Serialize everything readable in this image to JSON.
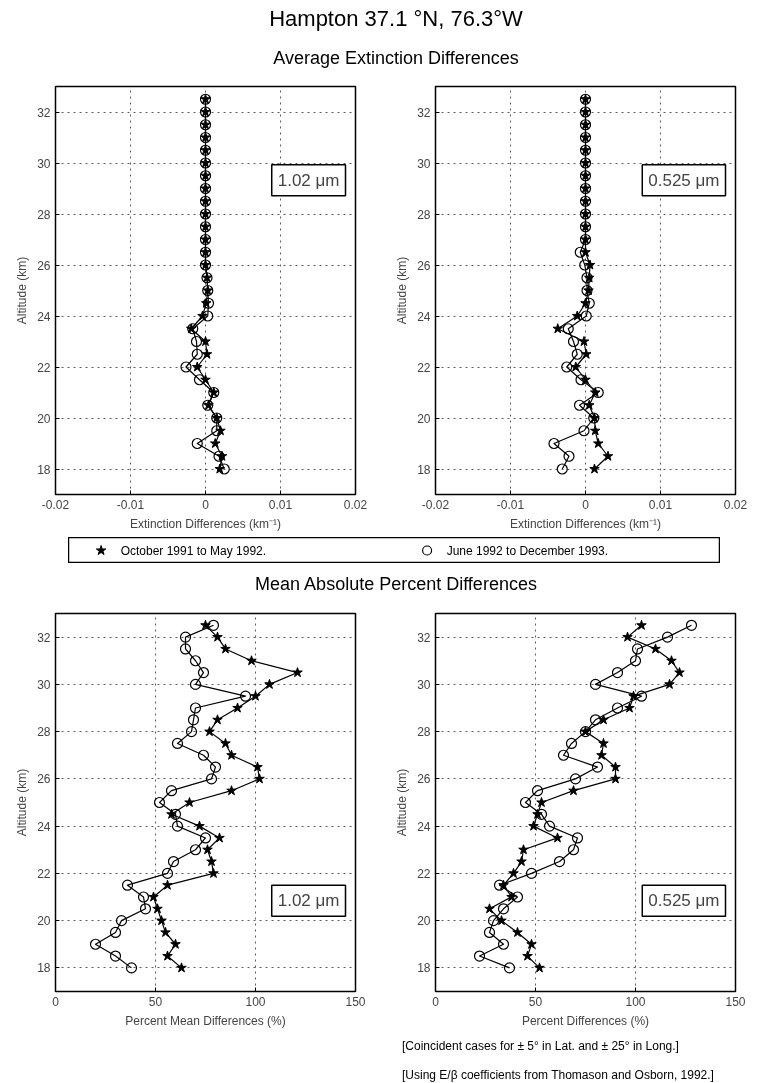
{
  "chart_data": [
    {
      "type": "line",
      "orientation": "horizontal",
      "title": "Hampton 37.1 °N, 76.3°W",
      "subtitle": "Average Extinction Differences",
      "xlabel": "Extinction Differences (km⁻¹)",
      "ylabel": "Altitude (km)",
      "annotations": [
        "1.02 μm"
      ],
      "xlim": [
        -0.02,
        0.02
      ],
      "xticks": [
        -0.02,
        -0.01,
        0,
        0.01,
        0.02
      ],
      "ylim": [
        17,
        33
      ],
      "yticks": [
        18,
        20,
        22,
        24,
        26,
        28,
        30,
        32
      ],
      "grid": true,
      "legend": "bottom",
      "line_style": "solid",
      "x": [
        32.5,
        32,
        31.5,
        31,
        30.5,
        30,
        29.5,
        29,
        28.5,
        28,
        27.5,
        27,
        26.5,
        26,
        25.5,
        25,
        24.5,
        24,
        23.5,
        23,
        22.5,
        22,
        21.5,
        21,
        20.5,
        20,
        19.5,
        19,
        18.5,
        18
      ],
      "series": [
        {
          "name": "October 1991 to May 1992.",
          "color": "#000000",
          "marker": "star",
          "values": [
            0,
            0,
            0,
            0,
            0,
            0,
            0,
            0,
            0,
            0,
            0,
            0,
            0,
            0,
            0.0002,
            0.0003,
            0.0001,
            -0.0004,
            -0.0019,
            0.0,
            0.0002,
            -0.0011,
            0.0,
            0.0011,
            0.0004,
            0.0015,
            0.002,
            0.0013,
            0.0022,
            0.0019
          ]
        },
        {
          "name": "June 1992 to December 1993.",
          "color": "#000000",
          "marker": "circle",
          "values": [
            0,
            0,
            0,
            0,
            0,
            0,
            0,
            0,
            0,
            0,
            0,
            0,
            0,
            0,
            0.0002,
            0.0003,
            0.0004,
            0.0003,
            -0.0017,
            -0.0012,
            -0.0011,
            -0.0026,
            -0.0008,
            0.0011,
            0.0003,
            0.0015,
            0.0015,
            -0.0011,
            0.0018,
            0.0025
          ]
        }
      ]
    },
    {
      "type": "line",
      "orientation": "horizontal",
      "xlabel": "Extinction Differences (km⁻¹)",
      "ylabel": "Altitude (km)",
      "annotations": [
        "0.525 μm"
      ],
      "xlim": [
        -0.02,
        0.02
      ],
      "xticks": [
        -0.02,
        -0.01,
        0,
        0.01,
        0.02
      ],
      "ylim": [
        17,
        33
      ],
      "yticks": [
        18,
        20,
        22,
        24,
        26,
        28,
        30,
        32
      ],
      "grid": true,
      "line_style": "solid",
      "x": [
        32.5,
        32,
        31.5,
        31,
        30.5,
        30,
        29.5,
        29,
        28.5,
        28,
        27.5,
        27,
        26.5,
        26,
        25.5,
        25,
        24.5,
        24,
        23.5,
        23,
        22.5,
        22,
        21.5,
        21,
        20.5,
        20,
        19.5,
        19,
        18.5,
        18
      ],
      "series": [
        {
          "color": "#000000",
          "marker": "star",
          "values": [
            0,
            0,
            0,
            0,
            0,
            0,
            0,
            0,
            0,
            0,
            0,
            0,
            0,
            0.0006,
            0.0005,
            0.0004,
            0,
            -0.0011,
            -0.0037,
            -0.0002,
            0.0001,
            -0.0013,
            0,
            0.0013,
            0.0005,
            0.0012,
            0.0013,
            0.0017,
            0.003,
            0.0012
          ]
        },
        {
          "color": "#000000",
          "marker": "circle",
          "values": [
            0,
            0,
            0,
            0,
            0,
            0,
            0,
            0,
            0,
            0,
            0,
            0,
            -0.0007,
            -0.0001,
            0.0002,
            0.0002,
            0.0005,
            0.0001,
            -0.0023,
            -0.0016,
            -0.0011,
            -0.0025,
            -0.0006,
            0.0017,
            -0.0008,
            0.0011,
            -0.0002,
            -0.0042,
            -0.0022,
            -0.0031
          ]
        }
      ]
    },
    {
      "type": "line",
      "orientation": "horizontal",
      "title": "Mean Absolute Percent Differences",
      "xlabel": "Percent Mean Differences (%)",
      "ylabel": "Altitude (km)",
      "annotations": [
        "1.02 μm"
      ],
      "xlim": [
        0,
        150
      ],
      "xticks": [
        0,
        50,
        100,
        150
      ],
      "ylim": [
        17,
        33
      ],
      "yticks": [
        18,
        20,
        22,
        24,
        26,
        28,
        30,
        32
      ],
      "grid": true,
      "line_style": "solid",
      "x": [
        32.5,
        32,
        31.5,
        31,
        30.5,
        30,
        29.5,
        29,
        28.5,
        28,
        27.5,
        27,
        26.5,
        26,
        25.5,
        25,
        24.5,
        24,
        23.5,
        23,
        22.5,
        22,
        21.5,
        21,
        20.5,
        20,
        19.5,
        19,
        18.5,
        18
      ],
      "series": [
        {
          "color": "#000000",
          "marker": "star",
          "values": [
            75,
            81,
            85,
            98,
            121,
            107,
            100,
            91,
            81,
            77,
            85,
            88,
            101,
            102,
            88,
            67,
            58,
            72,
            82,
            76,
            78,
            79,
            56,
            49,
            51,
            53,
            55,
            60,
            56,
            63
          ]
        },
        {
          "color": "#000000",
          "marker": "circle",
          "values": [
            79,
            65,
            65,
            70,
            74,
            70,
            95,
            70,
            69,
            68,
            61,
            74,
            80,
            78,
            58,
            52,
            60,
            61,
            75,
            70,
            59,
            56,
            36,
            44,
            45,
            33,
            30,
            20,
            30,
            38
          ]
        }
      ]
    },
    {
      "type": "line",
      "orientation": "horizontal",
      "xlabel": "Percent Differences (%)",
      "ylabel": "Altitude (km)",
      "annotations": [
        "0.525 μm",
        "[Coincident cases for ± 5° in Lat. and ± 25° in Long.]",
        "[Using E/β coefficients from Thomason and Osborn, 1992.]"
      ],
      "xlim": [
        0,
        150
      ],
      "xticks": [
        0,
        50,
        100,
        150
      ],
      "ylim": [
        17,
        33
      ],
      "yticks": [
        18,
        20,
        22,
        24,
        26,
        28,
        30,
        32
      ],
      "grid": true,
      "line_style": "solid",
      "x": [
        32.5,
        32,
        31.5,
        31,
        30.5,
        30,
        29.5,
        29,
        28.5,
        28,
        27.5,
        27,
        26.5,
        26,
        25.5,
        25,
        24.5,
        24,
        23.5,
        23,
        22.5,
        22,
        21.5,
        21,
        20.5,
        20,
        19.5,
        19,
        18.5,
        18
      ],
      "series": [
        {
          "color": "#000000",
          "marker": "star",
          "values": [
            103,
            96,
            110,
            118,
            122,
            117,
            99,
            97,
            84,
            75,
            84,
            83,
            90,
            90,
            69,
            53,
            51,
            49,
            61,
            44,
            43,
            39,
            34,
            38,
            27,
            33,
            41,
            48,
            46,
            52
          ]
        },
        {
          "color": "#000000",
          "marker": "circle",
          "values": [
            128,
            116,
            101,
            100,
            91,
            80,
            103,
            91,
            80,
            75,
            68,
            64,
            81,
            70,
            51,
            45,
            53,
            57,
            71,
            69,
            62,
            48,
            32,
            41,
            34,
            29,
            27,
            34,
            22,
            37
          ]
        }
      ]
    }
  ]
}
